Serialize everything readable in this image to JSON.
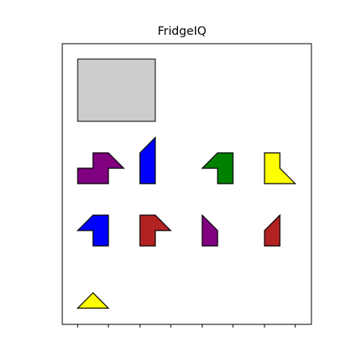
{
  "title": "FridgeIQ",
  "colors": {
    "board_bg": "#ffffff",
    "axes_edge": "#000000",
    "target_fill": "#cccccc",
    "purple": "#800080",
    "blue": "#0000ff",
    "green": "#008000",
    "yellow": "#ffff00",
    "red": "#b22222"
  },
  "target": {
    "name": "target-area",
    "color": "target_fill"
  },
  "pieces": [
    {
      "name": "piece-purple-step",
      "color": "purple"
    },
    {
      "name": "piece-blue-tall",
      "color": "blue"
    },
    {
      "name": "piece-green-hook",
      "color": "green"
    },
    {
      "name": "piece-yellow-boot",
      "color": "yellow"
    },
    {
      "name": "piece-blue-hook",
      "color": "blue"
    },
    {
      "name": "piece-red-hook",
      "color": "red"
    },
    {
      "name": "piece-purple-wedge",
      "color": "purple"
    },
    {
      "name": "piece-red-wedge",
      "color": "red"
    },
    {
      "name": "piece-yellow-triangle",
      "color": "yellow"
    }
  ]
}
